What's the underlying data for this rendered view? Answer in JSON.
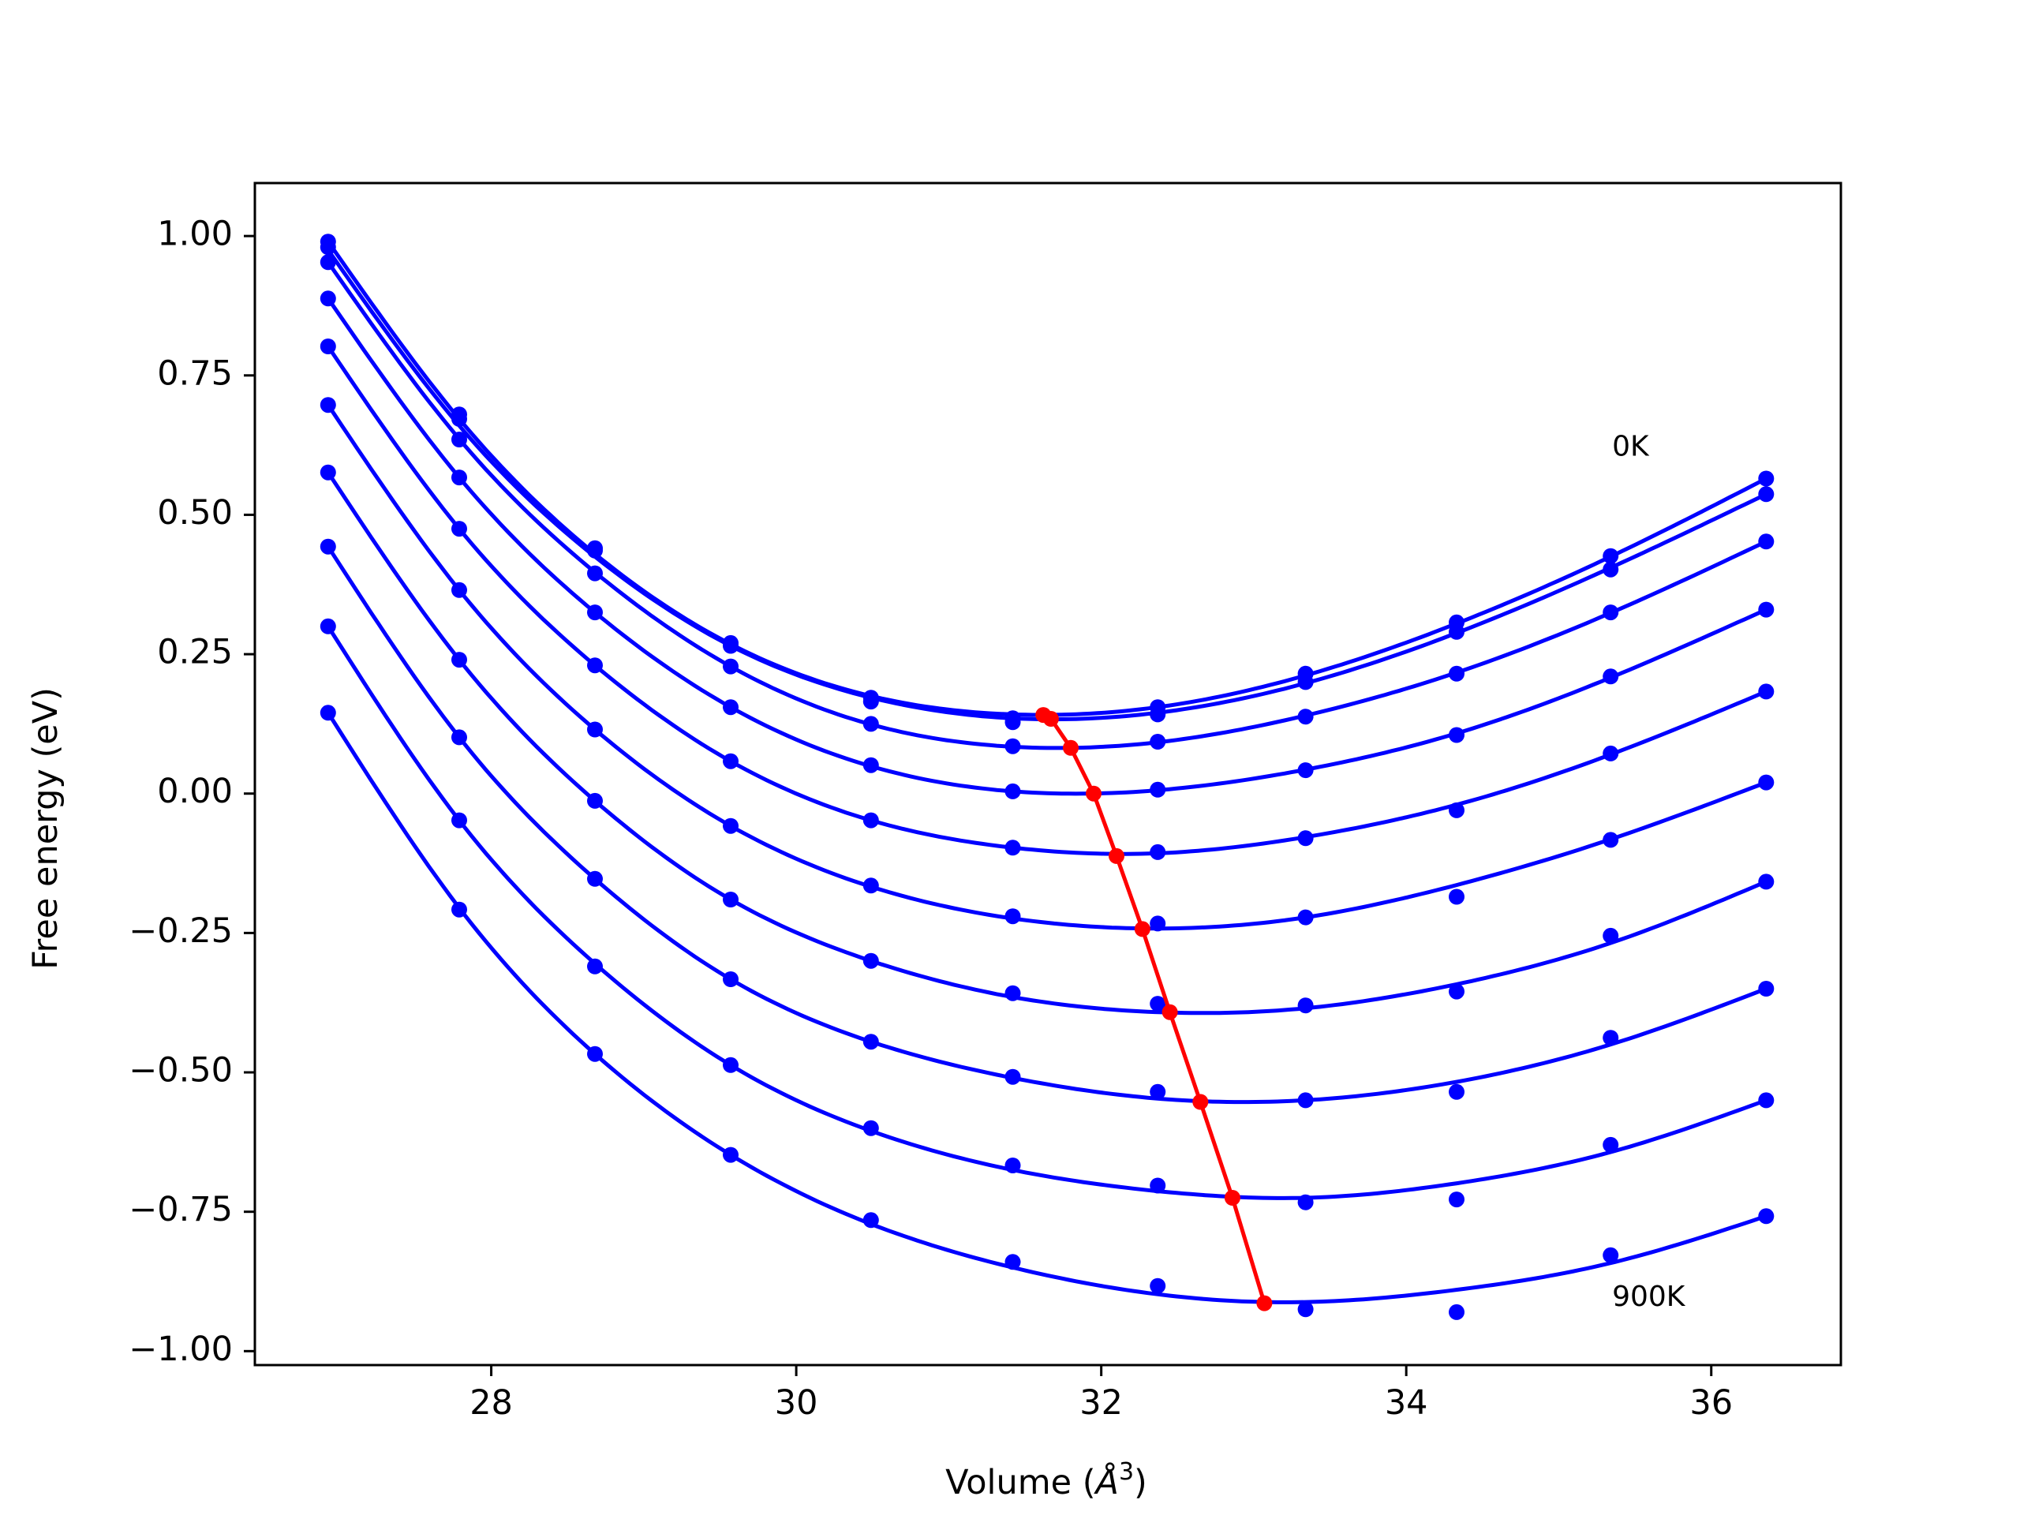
{
  "chart_data": {
    "type": "scatter",
    "title": "",
    "xlabel": "Volume (",
    "xlabel_symbol": "Å",
    "xlabel_exponent": "3",
    "xlabel_close": ")",
    "ylabel": "Free energy (eV)",
    "xlim": [
      26.45,
      36.85
    ],
    "ylim": [
      -1.025,
      1.095
    ],
    "xticks": [
      28,
      30,
      32,
      34,
      36
    ],
    "xtick_labels": [
      "28",
      "30",
      "32",
      "34",
      "36"
    ],
    "yticks": [
      1.0,
      0.75,
      0.5,
      0.25,
      0.0,
      -0.25,
      -0.5,
      -0.75,
      -1.0
    ],
    "ytick_labels": [
      "1.00",
      "0.75",
      "0.50",
      "0.25",
      "0.00",
      "−0.25",
      "−0.50",
      "−0.75",
      "−1.00"
    ],
    "grid": false,
    "legend": "none",
    "annotations": [
      {
        "text": "0K",
        "x": 35.35,
        "y": 0.62
      },
      {
        "text": "900K",
        "x": 35.35,
        "y": -0.905
      }
    ],
    "volumes": [
      26.93,
      27.79,
      28.68,
      29.57,
      30.49,
      31.42,
      32.37,
      33.34,
      34.33,
      36.36
    ],
    "volumes_note_extra": [
      35.34
    ],
    "series": [
      {
        "points_x": [
          26.93,
          27.79,
          28.68,
          29.57,
          30.49,
          31.42,
          32.37,
          33.34,
          34.33,
          35.34,
          36.36
        ],
        "points_y": [
          0.99,
          0.68,
          0.44,
          0.27,
          0.165,
          0.128,
          0.155,
          0.215,
          0.307,
          0.426,
          0.565
        ],
        "fit_y": [
          0.99,
          0.672,
          0.43,
          0.268,
          0.175,
          0.142,
          0.155,
          0.212,
          0.305,
          0.425,
          0.565
        ],
        "min": [
          31.62,
          0.141
        ]
      },
      {
        "points_x": [
          26.93,
          27.79,
          28.68,
          29.57,
          30.49,
          31.42,
          32.37,
          33.34,
          34.33,
          35.34,
          36.36
        ],
        "points_y": [
          0.98,
          0.672,
          0.436,
          0.265,
          0.172,
          0.135,
          0.142,
          0.2,
          0.29,
          0.402,
          0.537
        ],
        "fit_y": [
          0.975,
          0.66,
          0.425,
          0.265,
          0.172,
          0.135,
          0.145,
          0.198,
          0.288,
          0.405,
          0.537
        ],
        "min": [
          31.67,
          0.134
        ]
      },
      {
        "points_x": [
          26.93,
          27.79,
          28.68,
          29.57,
          30.49,
          31.42,
          32.37,
          33.34,
          34.33,
          35.34,
          36.36
        ],
        "points_y": [
          0.953,
          0.635,
          0.395,
          0.228,
          0.125,
          0.085,
          0.093,
          0.138,
          0.215,
          0.325,
          0.452
        ],
        "fit_y": [
          0.953,
          0.636,
          0.397,
          0.228,
          0.124,
          0.084,
          0.092,
          0.14,
          0.217,
          0.324,
          0.452
        ],
        "min": [
          31.8,
          0.082
        ]
      },
      {
        "points_x": [
          26.93,
          27.79,
          28.68,
          29.57,
          30.49,
          31.42,
          32.37,
          33.34,
          34.33,
          35.34,
          36.36
        ],
        "points_y": [
          0.888,
          0.567,
          0.325,
          0.155,
          0.051,
          0.004,
          0.007,
          0.042,
          0.105,
          0.21,
          0.33
        ],
        "fit_y": [
          0.888,
          0.567,
          0.325,
          0.155,
          0.049,
          0.004,
          0.006,
          0.043,
          0.108,
          0.208,
          0.33
        ],
        "min": [
          31.95,
          0.0
        ]
      },
      {
        "points_x": [
          26.93,
          27.79,
          28.68,
          29.57,
          30.49,
          31.42,
          32.37,
          33.34,
          34.33,
          35.34,
          36.36
        ],
        "points_y": [
          0.802,
          0.475,
          0.23,
          0.058,
          -0.048,
          -0.097,
          -0.105,
          -0.08,
          -0.03,
          0.072,
          0.183
        ],
        "fit_y": [
          0.802,
          0.475,
          0.23,
          0.058,
          -0.048,
          -0.097,
          -0.107,
          -0.078,
          -0.02,
          0.07,
          0.183
        ],
        "min": [
          32.1,
          -0.112
        ]
      },
      {
        "points_x": [
          26.93,
          27.79,
          28.68,
          29.57,
          30.49,
          31.42,
          32.37,
          33.34,
          34.33,
          35.34,
          36.36
        ],
        "points_y": [
          0.697,
          0.365,
          0.115,
          -0.058,
          -0.165,
          -0.22,
          -0.233,
          -0.222,
          -0.185,
          -0.083,
          0.02
        ],
        "fit_y": [
          0.697,
          0.365,
          0.115,
          -0.058,
          -0.167,
          -0.224,
          -0.242,
          -0.222,
          -0.164,
          -0.082,
          0.02
        ],
        "min": [
          32.27,
          -0.243
        ]
      },
      {
        "points_x": [
          26.93,
          27.79,
          28.68,
          29.57,
          30.49,
          31.42,
          32.37,
          33.34,
          34.33,
          35.34,
          36.36
        ],
        "points_y": [
          0.576,
          0.24,
          -0.013,
          -0.19,
          -0.3,
          -0.358,
          -0.377,
          -0.38,
          -0.355,
          -0.255,
          -0.158
        ],
        "fit_y": [
          0.576,
          0.24,
          -0.013,
          -0.19,
          -0.3,
          -0.365,
          -0.392,
          -0.385,
          -0.342,
          -0.268,
          -0.158
        ],
        "min": [
          32.45,
          -0.392
        ]
      },
      {
        "points_x": [
          26.93,
          27.79,
          28.68,
          29.57,
          30.49,
          31.42,
          32.37,
          33.34,
          34.33,
          35.34,
          36.36
        ],
        "points_y": [
          0.443,
          0.101,
          -0.153,
          -0.333,
          -0.445,
          -0.508,
          -0.535,
          -0.55,
          -0.535,
          -0.438,
          -0.35
        ],
        "fit_y": [
          0.443,
          0.101,
          -0.153,
          -0.333,
          -0.445,
          -0.51,
          -0.547,
          -0.55,
          -0.517,
          -0.45,
          -0.35
        ],
        "min": [
          32.65,
          -0.553
        ]
      },
      {
        "points_x": [
          26.93,
          27.79,
          28.68,
          29.57,
          30.49,
          31.42,
          32.37,
          33.34,
          34.33,
          35.34,
          36.36
        ],
        "points_y": [
          0.3,
          -0.048,
          -0.31,
          -0.487,
          -0.6,
          -0.667,
          -0.703,
          -0.733,
          -0.728,
          -0.63,
          -0.55
        ],
        "fit_y": [
          0.3,
          -0.048,
          -0.305,
          -0.487,
          -0.605,
          -0.675,
          -0.713,
          -0.725,
          -0.699,
          -0.643,
          -0.55
        ],
        "min": [
          32.86,
          -0.725
        ]
      },
      {
        "points_x": [
          26.93,
          27.79,
          28.68,
          29.57,
          30.49,
          31.42,
          32.37,
          33.34,
          34.33,
          35.34,
          36.36
        ],
        "points_y": [
          0.145,
          -0.208,
          -0.467,
          -0.648,
          -0.765,
          -0.84,
          -0.883,
          -0.925,
          -0.93,
          -0.828,
          -0.758
        ],
        "fit_y": [
          0.145,
          -0.205,
          -0.467,
          -0.648,
          -0.772,
          -0.85,
          -0.898,
          -0.912,
          -0.89,
          -0.842,
          -0.758
        ],
        "min": [
          33.07,
          -0.914
        ]
      }
    ],
    "minimum_line": {
      "x": [
        31.62,
        31.67,
        31.8,
        31.95,
        32.1,
        32.27,
        32.45,
        32.65,
        32.86,
        33.07
      ],
      "y": [
        0.141,
        0.134,
        0.082,
        0.0,
        -0.112,
        -0.243,
        -0.392,
        -0.553,
        -0.725,
        -0.914
      ]
    },
    "colors": {
      "curves": "#0000ff",
      "minimum_line": "#ff0000",
      "axes": "#000000",
      "background": "#ffffff"
    }
  }
}
